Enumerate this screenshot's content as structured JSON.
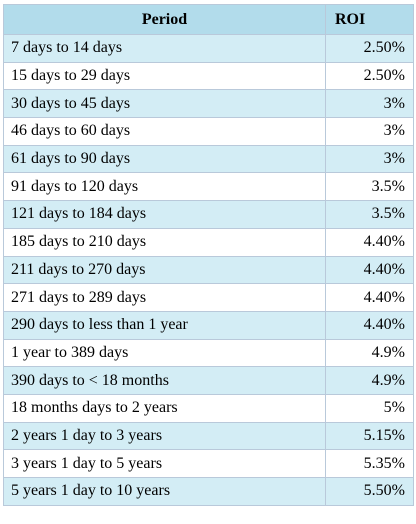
{
  "table": {
    "headers": {
      "period": "Period",
      "roi": "ROI"
    },
    "rows": [
      {
        "period": "7 days to 14 days",
        "roi": "2.50%"
      },
      {
        "period": "15 days to 29 days",
        "roi": "2.50%"
      },
      {
        "period": "30 days to 45 days",
        "roi": "3%"
      },
      {
        "period": "46 days to 60 days",
        "roi": "3%"
      },
      {
        "period": "61 days to 90 days",
        "roi": "3%"
      },
      {
        "period": "91 days to 120 days",
        "roi": "3.5%"
      },
      {
        "period": "121 days to 184 days",
        "roi": "3.5%"
      },
      {
        "period": "185 days to 210 days",
        "roi": "4.40%"
      },
      {
        "period": "211 days to 270 days",
        "roi": "4.40%"
      },
      {
        "period": "271 days to 289 days",
        "roi": "4.40%"
      },
      {
        "period": "290 days to less than 1 year",
        "roi": "4.40%"
      },
      {
        "period": "1 year to 389 days",
        "roi": "4.9%"
      },
      {
        "period": "390 days to < 18 months",
        "roi": "4.9%"
      },
      {
        "period": "18 months days to 2 years",
        "roi": "5%"
      },
      {
        "period": "2 years 1 day to 3 years",
        "roi": "5.15%"
      },
      {
        "period": "3 years 1 day to 5 years",
        "roi": "5.35%"
      },
      {
        "period": "5 years 1 day to 10 years",
        "roi": "5.50%"
      }
    ],
    "colors": {
      "header_bg": "#b2dceb",
      "shaded_row_bg": "#d3edf5",
      "plain_row_bg": "#ffffff",
      "border": "#b9c9da"
    }
  }
}
